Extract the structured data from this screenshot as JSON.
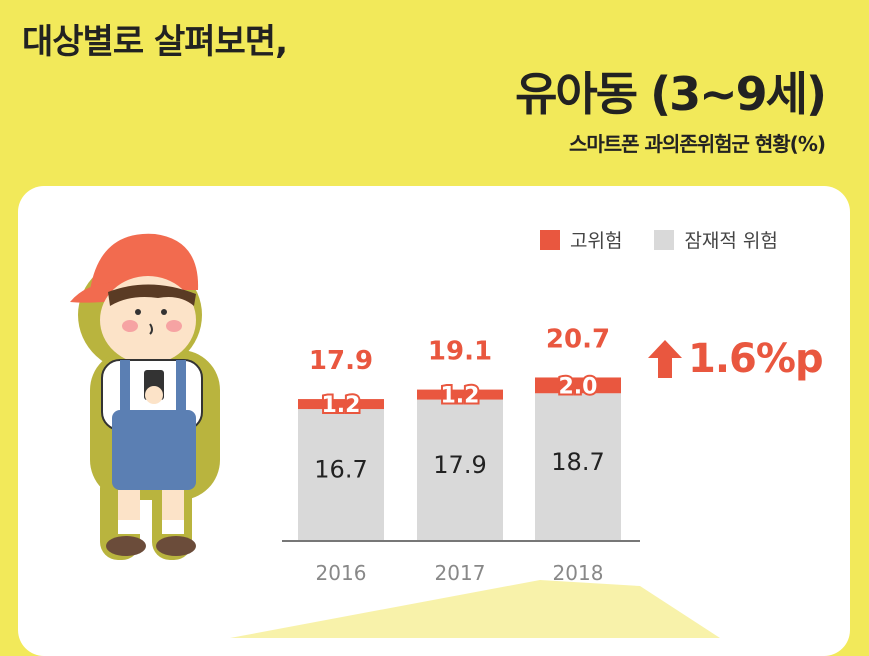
{
  "heading": "대상별로 살펴보면,",
  "target_group": "유아동 (3~9세)",
  "subtitle": "스마트폰 과의존위험군 현황(%)",
  "legend": [
    {
      "label": "고위험",
      "color": "#E9573F"
    },
    {
      "label": "잠재적 위험",
      "color": "#D9D9D9"
    }
  ],
  "increase": {
    "icon": "up-arrow-icon",
    "text": "1.6%p"
  },
  "chart_data": {
    "type": "bar",
    "stacked": true,
    "categories": [
      "2016",
      "2017",
      "2018"
    ],
    "series": [
      {
        "name": "잠재적 위험",
        "color": "#D9D9D9",
        "values": [
          16.7,
          17.9,
          18.7
        ]
      },
      {
        "name": "고위험",
        "color": "#E9573F",
        "values": [
          1.2,
          1.2,
          2.0
        ]
      }
    ],
    "totals": [
      17.9,
      19.1,
      20.7
    ],
    "title": "스마트폰 과의존위험군 현황(%)",
    "xlabel": "",
    "ylabel": "",
    "ylim": [
      0,
      30
    ],
    "grid": false,
    "legend_position": "top-right"
  }
}
